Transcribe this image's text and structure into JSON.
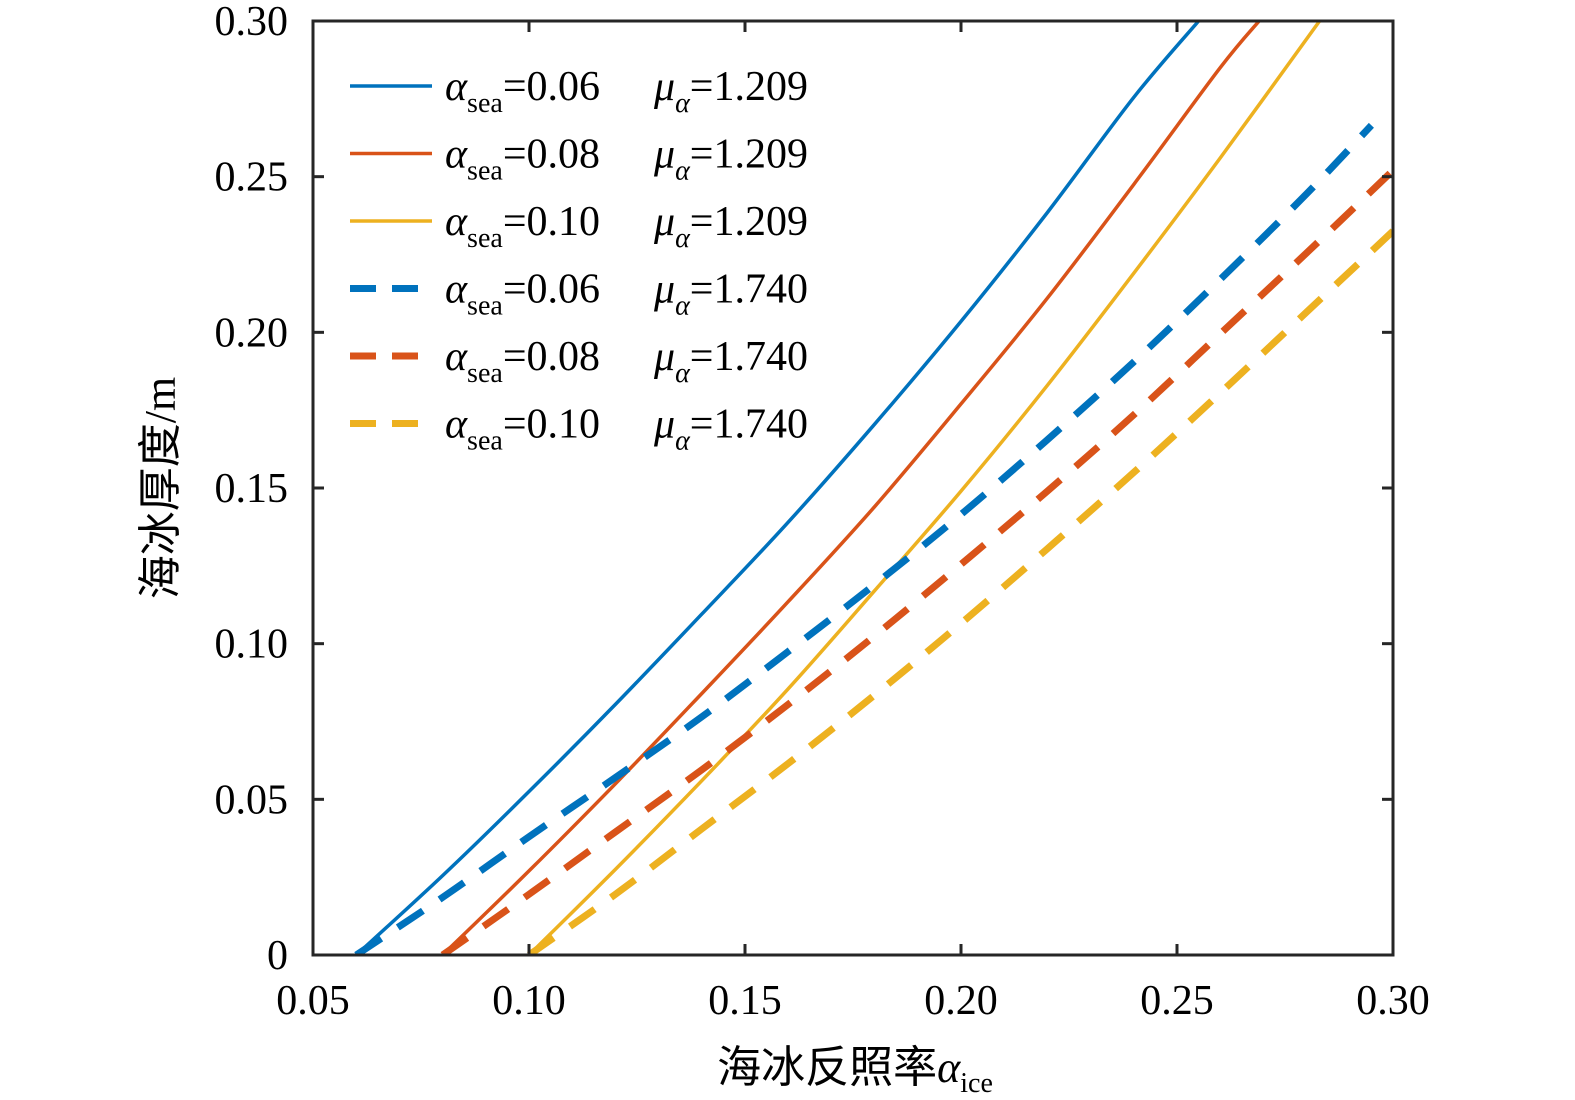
{
  "chart_data": {
    "type": "line",
    "xlabel": {
      "text": "海冰反照率",
      "symbol": "α",
      "sub": "ice"
    },
    "ylabel": "海冰厚度/m",
    "xlim": [
      0.05,
      0.3
    ],
    "ylim": [
      0,
      0.3
    ],
    "xticks": [
      0.05,
      0.1,
      0.15,
      0.2,
      0.25,
      0.3
    ],
    "xtick_labels": [
      "0.05",
      "0.10",
      "0.15",
      "0.20",
      "0.25",
      "0.30"
    ],
    "yticks": [
      0,
      0.05,
      0.1,
      0.15,
      0.2,
      0.25,
      0.3
    ],
    "ytick_labels": [
      "0",
      "0.05",
      "0.10",
      "0.15",
      "0.20",
      "0.25",
      "0.30"
    ],
    "grid": false,
    "legend_position": "top-left",
    "series": [
      {
        "name": "α_sea=0.06  μ_α=1.209",
        "alpha_sea": "0.06",
        "mu": "1.209",
        "color": "#0072BD",
        "style": "solid",
        "x": [
          0.06,
          0.08,
          0.1,
          0.12,
          0.14,
          0.16,
          0.18,
          0.2,
          0.22,
          0.24,
          0.255
        ],
        "y": [
          0,
          0.0255,
          0.0525,
          0.0805,
          0.1095,
          0.139,
          0.1705,
          0.2035,
          0.2385,
          0.2755,
          0.3
        ]
      },
      {
        "name": "α_sea=0.08  μ_α=1.209",
        "alpha_sea": "0.08",
        "mu": "1.209",
        "color": "#D95319",
        "style": "solid",
        "x": [
          0.08,
          0.1,
          0.12,
          0.14,
          0.16,
          0.18,
          0.2,
          0.22,
          0.24,
          0.26,
          0.269
        ],
        "y": [
          0,
          0.027,
          0.055,
          0.084,
          0.1135,
          0.144,
          0.177,
          0.211,
          0.2475,
          0.285,
          0.3
        ]
      },
      {
        "name": "α_sea=0.10  μ_α=1.209",
        "alpha_sea": "0.10",
        "mu": "1.209",
        "color": "#EDB120",
        "style": "solid",
        "x": [
          0.1,
          0.12,
          0.14,
          0.16,
          0.18,
          0.2,
          0.22,
          0.24,
          0.26,
          0.283
        ],
        "y": [
          0,
          0.0275,
          0.056,
          0.0855,
          0.117,
          0.149,
          0.183,
          0.219,
          0.256,
          0.3
        ]
      },
      {
        "name": "α_sea=0.06  μ_α=1.740",
        "alpha_sea": "0.06",
        "mu": "1.740",
        "color": "#0072BD",
        "style": "dashed",
        "x": [
          0.06,
          0.08,
          0.1,
          0.12,
          0.14,
          0.16,
          0.18,
          0.2,
          0.22,
          0.24,
          0.26,
          0.28,
          0.295
        ],
        "y": [
          0,
          0.0185,
          0.038,
          0.057,
          0.0765,
          0.0975,
          0.119,
          0.1415,
          0.1655,
          0.1905,
          0.217,
          0.2445,
          0.2665
        ]
      },
      {
        "name": "α_sea=0.08  μ_α=1.740",
        "alpha_sea": "0.08",
        "mu": "1.740",
        "color": "#D95319",
        "style": "dashed",
        "x": [
          0.08,
          0.1,
          0.12,
          0.14,
          0.16,
          0.18,
          0.2,
          0.22,
          0.24,
          0.26,
          0.28,
          0.3
        ],
        "y": [
          0,
          0.0195,
          0.0395,
          0.0595,
          0.0805,
          0.1025,
          0.1255,
          0.149,
          0.1735,
          0.1995,
          0.2255,
          0.252
        ]
      },
      {
        "name": "α_sea=0.10  μ_α=1.740",
        "alpha_sea": "0.10",
        "mu": "1.740",
        "color": "#EDB120",
        "style": "dashed",
        "x": [
          0.1,
          0.12,
          0.14,
          0.16,
          0.18,
          0.2,
          0.22,
          0.24,
          0.26,
          0.28,
          0.3
        ],
        "y": [
          0,
          0.0195,
          0.0405,
          0.0615,
          0.0835,
          0.1065,
          0.1305,
          0.155,
          0.1805,
          0.2065,
          0.2325
        ]
      }
    ]
  }
}
